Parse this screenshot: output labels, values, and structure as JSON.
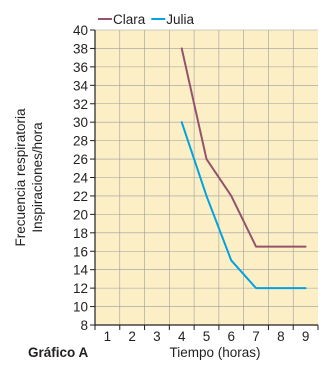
{
  "chart_data": {
    "type": "line",
    "caption": "Gráfico A",
    "xlabel": "Tiempo (horas)",
    "ylabel": [
      "Frecuencia respiratoria",
      "Inspiraciones/hora"
    ],
    "x_categories": [
      "1",
      "2",
      "3",
      "4",
      "5",
      "6",
      "7",
      "8",
      "9"
    ],
    "y_ticks": [
      8,
      10,
      12,
      14,
      16,
      18,
      20,
      22,
      24,
      26,
      28,
      30,
      32,
      34,
      36,
      38,
      40
    ],
    "ylim": [
      8,
      40
    ],
    "xlim": [
      0.5,
      9.5
    ],
    "grid": true,
    "legend_position": "top",
    "background_color": "#fcefc6",
    "series": [
      {
        "name": "Clara",
        "color": "#94536b",
        "x": [
          4,
          5,
          6,
          7,
          8,
          9
        ],
        "y": [
          38,
          26,
          22,
          16.5,
          16.5,
          16.5
        ]
      },
      {
        "name": "Julia",
        "color": "#00a3e0",
        "x": [
          4,
          5,
          6,
          7,
          8,
          9
        ],
        "y": [
          30,
          22,
          15,
          12,
          12,
          12
        ]
      }
    ]
  }
}
